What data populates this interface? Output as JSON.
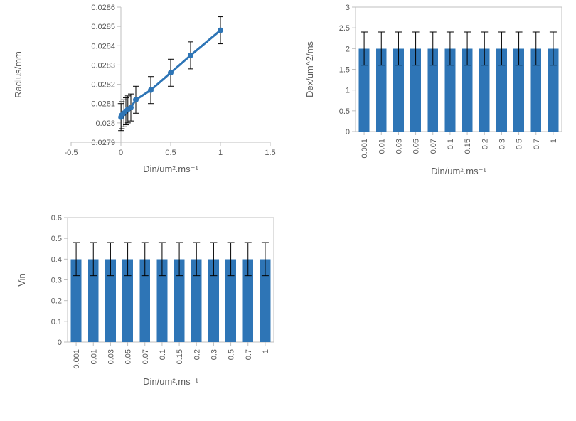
{
  "radius_chart": {
    "type": "line",
    "xlabel": "Din/um².ms⁻¹",
    "ylabel": "Radius/mm",
    "series_color": "#2e75b6",
    "marker_color": "#2e75b6",
    "errbar_color": "#000000",
    "line_width": 3,
    "marker_radius": 4,
    "xlim": [
      -0.5,
      1.5
    ],
    "xticks": [
      -0.5,
      0,
      0.5,
      1,
      1.5
    ],
    "ylim": [
      0.0279,
      0.0286
    ],
    "yticks": [
      0.0279,
      0.028,
      0.0281,
      0.0282,
      0.0283,
      0.0284,
      0.0285,
      0.0286
    ],
    "ytick_labels": [
      "0.0279",
      "0.028",
      "0.0281",
      "0.0282",
      "0.0283",
      "0.0284",
      "0.0285",
      "0.0286"
    ],
    "points": [
      {
        "x": 0.001,
        "y": 0.02803,
        "err": 7e-05
      },
      {
        "x": 0.01,
        "y": 0.02804,
        "err": 7e-05
      },
      {
        "x": 0.03,
        "y": 0.02805,
        "err": 7e-05
      },
      {
        "x": 0.05,
        "y": 0.02806,
        "err": 7e-05
      },
      {
        "x": 0.07,
        "y": 0.02807,
        "err": 7e-05
      },
      {
        "x": 0.1,
        "y": 0.02808,
        "err": 7e-05
      },
      {
        "x": 0.15,
        "y": 0.02812,
        "err": 7e-05
      },
      {
        "x": 0.3,
        "y": 0.02817,
        "err": 7e-05
      },
      {
        "x": 0.5,
        "y": 0.02826,
        "err": 7e-05
      },
      {
        "x": 0.7,
        "y": 0.02835,
        "err": 7e-05
      },
      {
        "x": 1.0,
        "y": 0.02848,
        "err": 7e-05
      }
    ],
    "style": {
      "title_fontsize": 13,
      "ticklabel_fontsize": 11,
      "background_color": "#ffffff",
      "axis_color": "#bfbfbf",
      "text_color": "#595959"
    }
  },
  "dex_chart": {
    "type": "bar",
    "xlabel": "Din/um².ms⁻¹",
    "ylabel": "Dex/um^2/ms",
    "bar_color": "#2e75b6",
    "errbar_color": "#000000",
    "ylim": [
      0,
      3
    ],
    "yticks": [
      0,
      0.5,
      1,
      1.5,
      2,
      2.5,
      3
    ],
    "categories": [
      "0.001",
      "0.01",
      "0.03",
      "0.05",
      "0.07",
      "0.1",
      "0.15",
      "0.2",
      "0.3",
      "0.5",
      "0.7",
      "1"
    ],
    "values": [
      2,
      2,
      2,
      2,
      2,
      2,
      2,
      2,
      2,
      2,
      2,
      2
    ],
    "errors": [
      0.4,
      0.4,
      0.4,
      0.4,
      0.4,
      0.4,
      0.4,
      0.4,
      0.4,
      0.4,
      0.4,
      0.4
    ],
    "bar_width_ratio": 0.62,
    "style": {
      "title_fontsize": 13,
      "ticklabel_fontsize": 11,
      "background_color": "#ffffff",
      "axis_color": "#bfbfbf",
      "text_color": "#595959"
    }
  },
  "vin_chart": {
    "type": "bar",
    "xlabel": "Din/um².ms⁻¹",
    "ylabel": "Vin",
    "bar_color": "#2e75b6",
    "errbar_color": "#000000",
    "ylim": [
      0,
      0.6
    ],
    "yticks": [
      0,
      0.1,
      0.2,
      0.3,
      0.4,
      0.5,
      0.6
    ],
    "categories": [
      "0.001",
      "0.01",
      "0.03",
      "0.05",
      "0.07",
      "0.1",
      "0.15",
      "0.2",
      "0.3",
      "0.5",
      "0.7",
      "1"
    ],
    "values": [
      0.4,
      0.4,
      0.4,
      0.4,
      0.4,
      0.4,
      0.4,
      0.4,
      0.4,
      0.4,
      0.4,
      0.4
    ],
    "errors": [
      0.08,
      0.08,
      0.08,
      0.08,
      0.08,
      0.08,
      0.08,
      0.08,
      0.08,
      0.08,
      0.08,
      0.08
    ],
    "bar_width_ratio": 0.62,
    "style": {
      "title_fontsize": 13,
      "ticklabel_fontsize": 11,
      "background_color": "#ffffff",
      "axis_color": "#bfbfbf",
      "text_color": "#595959"
    }
  }
}
